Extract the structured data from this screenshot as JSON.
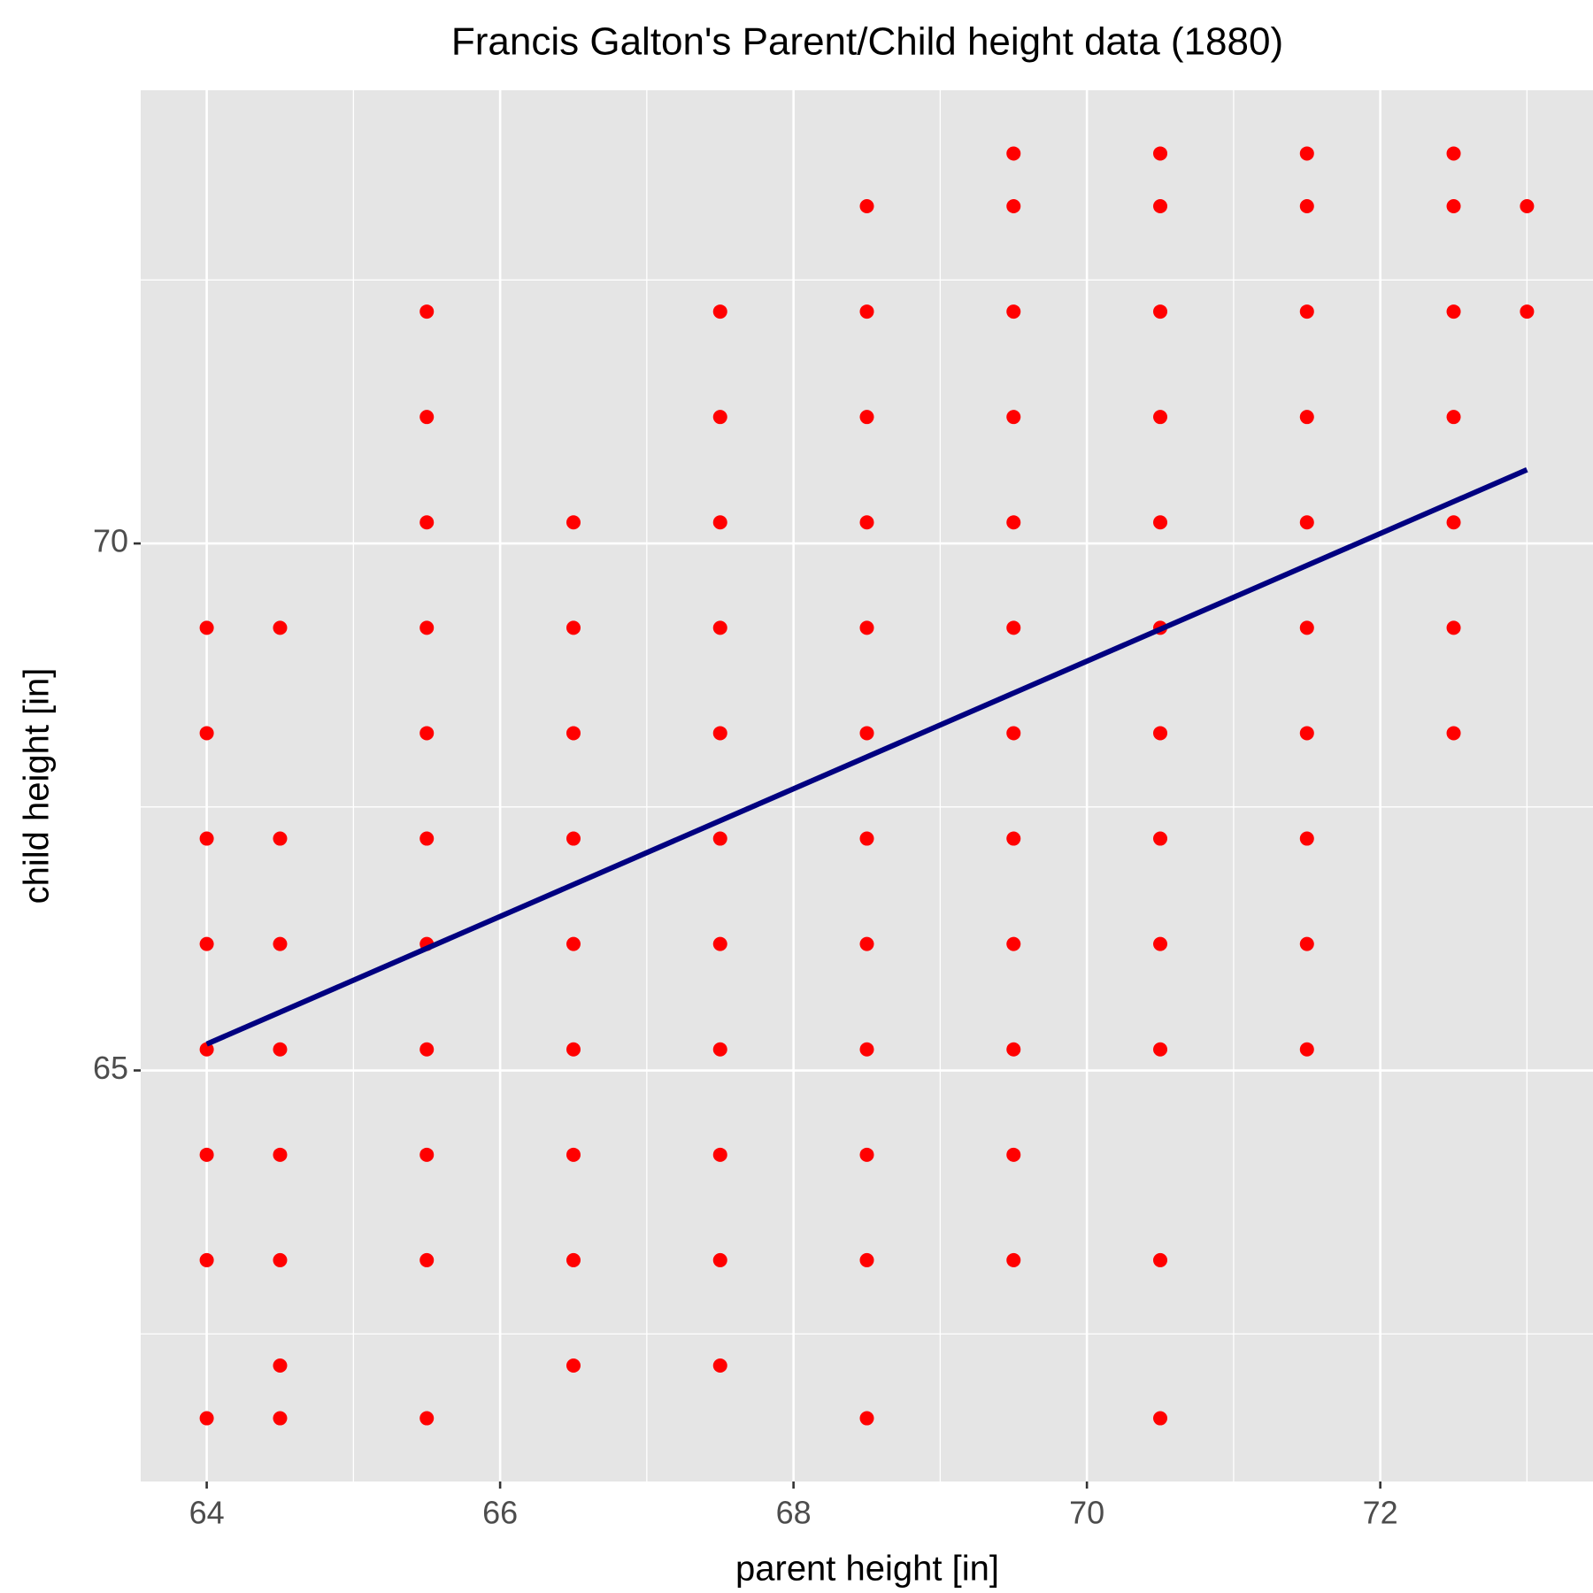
{
  "chart_data": {
    "type": "scatter",
    "title": "Francis Galton's Parent/Child height data (1880)",
    "x_label": "parent height [in]",
    "y_label": "child height [in]",
    "xlim": [
      63.55,
      73.45
    ],
    "xticks": [
      64,
      66,
      68,
      70,
      72
    ],
    "ylim": [
      61.1,
      74.3
    ],
    "yticks": [
      65,
      70
    ],
    "grid": true,
    "points": {
      "color": "#ff0000",
      "x": [
        64,
        64,
        64,
        64,
        64,
        64,
        64,
        64,
        64.5,
        64.5,
        64.5,
        64.5,
        64.5,
        64.5,
        64.5,
        64.5,
        65.5,
        65.5,
        65.5,
        65.5,
        65.5,
        65.5,
        65.5,
        65.5,
        65.5,
        65.5,
        65.5,
        66.5,
        66.5,
        66.5,
        66.5,
        66.5,
        66.5,
        66.5,
        66.5,
        66.5,
        67.5,
        67.5,
        67.5,
        67.5,
        67.5,
        67.5,
        67.5,
        67.5,
        67.5,
        67.5,
        67.5,
        68.5,
        68.5,
        68.5,
        68.5,
        68.5,
        68.5,
        68.5,
        68.5,
        68.5,
        68.5,
        68.5,
        68.5,
        69.5,
        69.5,
        69.5,
        69.5,
        69.5,
        69.5,
        69.5,
        69.5,
        69.5,
        69.5,
        69.5,
        69.5,
        70.5,
        70.5,
        70.5,
        70.5,
        70.5,
        70.5,
        70.5,
        70.5,
        70.5,
        70.5,
        70.5,
        70.5,
        71.5,
        71.5,
        71.5,
        71.5,
        71.5,
        71.5,
        71.5,
        71.5,
        71.5,
        71.5,
        72.5,
        72.5,
        72.5,
        72.5,
        72.5,
        72.5,
        72.5,
        73,
        73
      ],
      "y": [
        61.7,
        63.2,
        64.2,
        65.2,
        66.2,
        67.2,
        68.2,
        69.2,
        61.7,
        62.2,
        63.2,
        64.2,
        65.2,
        66.2,
        67.2,
        69.2,
        61.7,
        63.2,
        64.2,
        65.2,
        66.2,
        67.2,
        68.2,
        69.2,
        70.2,
        71.2,
        72.2,
        62.2,
        63.2,
        64.2,
        65.2,
        66.2,
        67.2,
        68.2,
        69.2,
        70.2,
        62.2,
        63.2,
        64.2,
        65.2,
        66.2,
        67.2,
        68.2,
        69.2,
        70.2,
        71.2,
        72.2,
        61.7,
        63.2,
        64.2,
        65.2,
        66.2,
        67.2,
        68.2,
        69.2,
        70.2,
        71.2,
        72.2,
        73.2,
        63.2,
        64.2,
        65.2,
        66.2,
        67.2,
        68.2,
        69.2,
        70.2,
        71.2,
        72.2,
        73.2,
        73.7,
        61.7,
        63.2,
        65.2,
        66.2,
        67.2,
        68.2,
        69.2,
        70.2,
        71.2,
        72.2,
        73.2,
        73.7,
        65.2,
        66.2,
        67.2,
        68.2,
        69.2,
        70.2,
        71.2,
        72.2,
        73.2,
        73.7,
        68.2,
        69.2,
        70.2,
        71.2,
        72.2,
        73.2,
        73.7,
        72.2,
        73.2
      ]
    },
    "fit_line": {
      "color": "#000080",
      "x": [
        64,
        73
      ],
      "y": [
        65.25,
        70.7
      ]
    }
  }
}
